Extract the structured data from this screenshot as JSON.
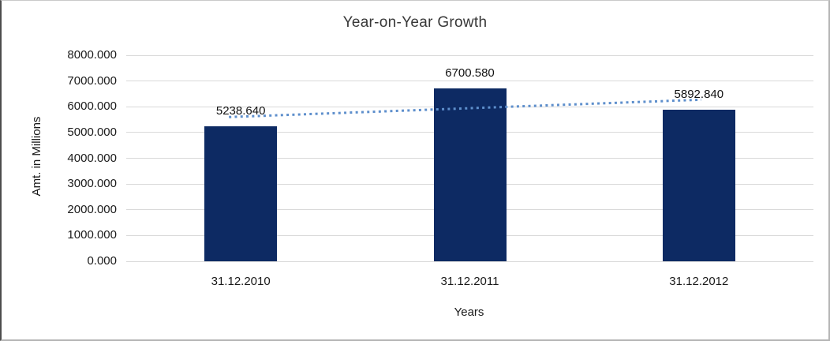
{
  "chart_data": {
    "type": "bar",
    "title": "Year-on-Year Growth",
    "xlabel": "Years",
    "ylabel": "Amt. in Millions",
    "categories": [
      "31.12.2010",
      "31.12.2011",
      "31.12.2012"
    ],
    "values": [
      5238.64,
      6700.58,
      5892.84
    ],
    "value_labels": [
      "5238.640",
      "6700.580",
      "5892.840"
    ],
    "ylim": [
      0,
      8000
    ],
    "ytick_step": 1000,
    "ytick_labels": [
      "0.000",
      "1000.000",
      "2000.000",
      "3000.000",
      "4000.000",
      "5000.000",
      "6000.000",
      "7000.000",
      "8000.000"
    ],
    "grid": true,
    "legend": "none",
    "bar_color": "#0d2a63",
    "gridline_color": "#d9d9d9",
    "trendline": {
      "type": "linear",
      "style": "dotted",
      "color": "#5e8fcc"
    }
  }
}
